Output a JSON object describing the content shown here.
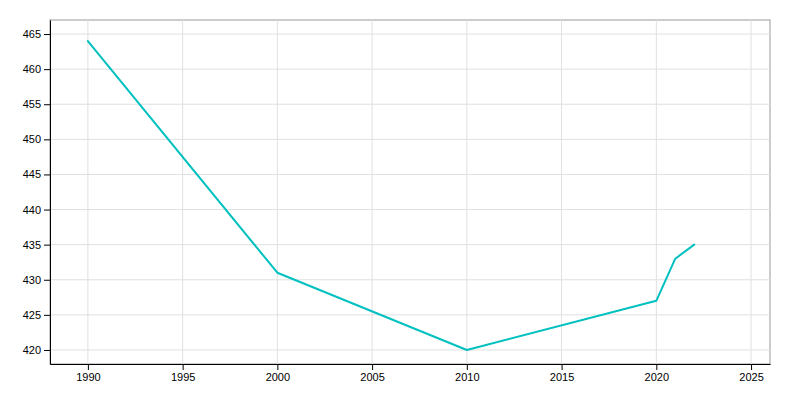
{
  "chart_data": {
    "type": "line",
    "x": [
      1990,
      2000,
      2010,
      2020,
      2021,
      2022
    ],
    "values": [
      464,
      431,
      420,
      427,
      433,
      435
    ],
    "color": "#00C0C0",
    "xlim": [
      1988,
      2026
    ],
    "ylim": [
      418,
      467
    ],
    "xticks": [
      1990,
      1995,
      2000,
      2005,
      2010,
      2015,
      2020,
      2025
    ],
    "yticks": [
      420,
      425,
      430,
      435,
      440,
      445,
      450,
      455,
      460,
      465
    ],
    "grid": true
  }
}
